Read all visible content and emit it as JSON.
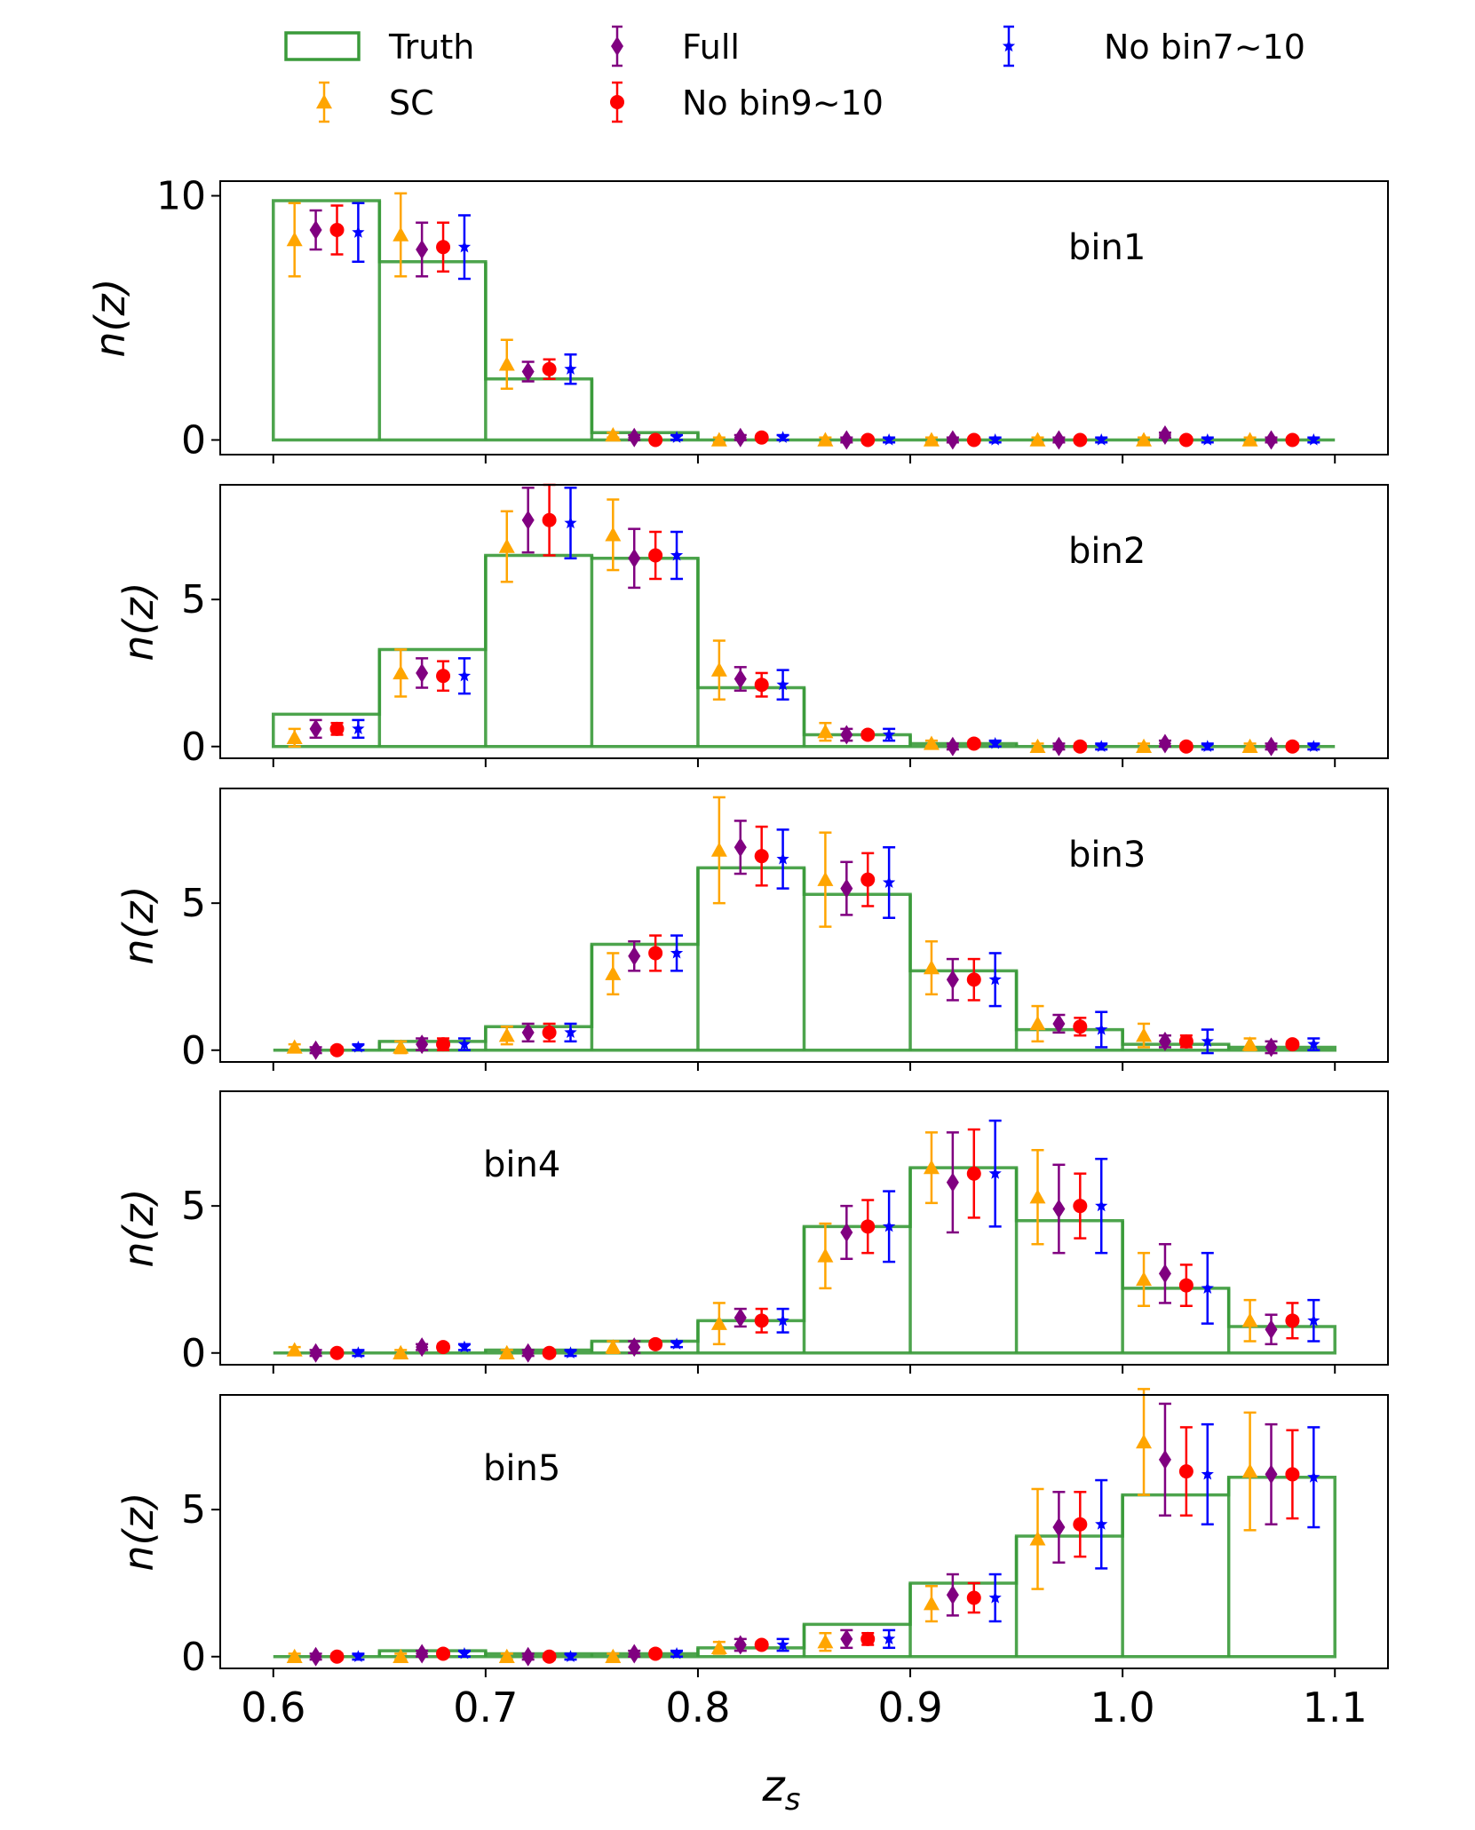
{
  "chart_data": {
    "type": "bar",
    "legend": {
      "placement": "top",
      "entries": [
        {
          "key": "truth",
          "label": "Truth"
        },
        {
          "key": "full",
          "label": "Full"
        },
        {
          "key": "no710",
          "label": "No bin7~10"
        },
        {
          "key": "sc",
          "label": "SC"
        },
        {
          "key": "no910",
          "label": "No bin9~10"
        }
      ]
    },
    "xlabel": "z_s",
    "ylabel": "n(z)",
    "xlim": [
      0.575,
      1.125
    ],
    "x_ticks": [
      "0.6",
      "0.7",
      "0.8",
      "0.9",
      "1.0",
      "1.1"
    ],
    "bin_edges": [
      0.6,
      0.65,
      0.7,
      0.75,
      0.8,
      0.85,
      0.9,
      0.95,
      1.0,
      1.05,
      1.1
    ],
    "colors": {
      "truth": "#3a9a3a",
      "sc": "#ffa500",
      "full": "#800080",
      "no910": "#ff0000",
      "no710": "#0000ff"
    },
    "markers": {
      "sc": "triangle",
      "full": "diamond",
      "no910": "circle",
      "no710": "star"
    },
    "offsets": {
      "sc": -0.015,
      "full": -0.005,
      "no910": 0.005,
      "no710": 0.015
    },
    "panels": [
      {
        "label": "bin1",
        "ylim": [
          -0.6,
          10.6
        ],
        "yticks": [
          "0",
          "10"
        ],
        "truth": [
          9.8,
          7.3,
          2.5,
          0.3,
          0.0,
          0.0,
          0.0,
          0.0,
          0.0,
          0.0
        ],
        "series": {
          "sc": {
            "values": [
              8.2,
              8.4,
              3.1,
              0.2,
              0.0,
              0.0,
              0.0,
              0.0,
              0.0,
              0.0
            ],
            "errors": [
              1.5,
              1.7,
              1.0,
              0.1,
              0.1,
              0.1,
              0.1,
              0.1,
              0.1,
              0.1
            ]
          },
          "full": {
            "values": [
              8.6,
              7.8,
              2.8,
              0.1,
              0.1,
              0.0,
              0.0,
              0.0,
              0.2,
              0.0
            ],
            "errors": [
              0.8,
              1.1,
              0.4,
              0.1,
              0.1,
              0.1,
              0.1,
              0.1,
              0.1,
              0.1
            ]
          },
          "no910": {
            "values": [
              8.6,
              7.9,
              2.9,
              0.0,
              0.1,
              0.0,
              0.0,
              0.0,
              0.0,
              0.0
            ],
            "errors": [
              1.0,
              1.0,
              0.4,
              0.1,
              0.1,
              0.1,
              0.1,
              0.1,
              0.1,
              0.1
            ]
          },
          "no710": {
            "values": [
              8.5,
              7.9,
              2.9,
              0.1,
              0.1,
              0.0,
              0.0,
              0.0,
              0.0,
              0.0
            ],
            "errors": [
              1.2,
              1.3,
              0.6,
              0.1,
              0.1,
              0.1,
              0.1,
              0.1,
              0.1,
              0.1
            ]
          }
        }
      },
      {
        "label": "bin2",
        "ylim": [
          -0.4,
          8.9
        ],
        "yticks": [
          "0",
          "5"
        ],
        "truth": [
          1.1,
          3.3,
          6.5,
          6.4,
          2.0,
          0.4,
          0.1,
          0.0,
          0.0,
          0.0
        ],
        "series": {
          "sc": {
            "values": [
              0.3,
              2.5,
              6.8,
              7.2,
              2.6,
              0.5,
              0.1,
              0.0,
              0.0,
              0.0
            ],
            "errors": [
              0.3,
              0.8,
              1.2,
              1.2,
              1.0,
              0.3,
              0.1,
              0.1,
              0.1,
              0.1
            ]
          },
          "full": {
            "values": [
              0.6,
              2.5,
              7.7,
              6.4,
              2.3,
              0.4,
              0.0,
              0.0,
              0.1,
              0.0
            ],
            "errors": [
              0.3,
              0.5,
              1.1,
              1.0,
              0.4,
              0.2,
              0.1,
              0.1,
              0.1,
              0.1
            ]
          },
          "no910": {
            "values": [
              0.6,
              2.4,
              7.7,
              6.5,
              2.1,
              0.4,
              0.1,
              0.0,
              0.0,
              0.0
            ],
            "errors": [
              0.2,
              0.5,
              1.2,
              0.8,
              0.4,
              0.1,
              0.1,
              0.1,
              0.1,
              0.1
            ]
          },
          "no710": {
            "values": [
              0.6,
              2.4,
              7.6,
              6.5,
              2.1,
              0.4,
              0.1,
              0.0,
              0.0,
              0.0
            ],
            "errors": [
              0.3,
              0.6,
              1.2,
              0.8,
              0.5,
              0.2,
              0.1,
              0.1,
              0.1,
              0.1
            ]
          }
        }
      },
      {
        "label": "bin3",
        "ylim": [
          -0.4,
          8.9
        ],
        "yticks": [
          "0",
          "5"
        ],
        "truth": [
          0.0,
          0.3,
          0.8,
          3.6,
          6.2,
          5.3,
          2.7,
          0.7,
          0.2,
          0.1
        ],
        "series": {
          "sc": {
            "values": [
              0.1,
              0.1,
              0.5,
              2.6,
              6.8,
              5.8,
              2.8,
              0.9,
              0.5,
              0.2
            ],
            "errors": [
              0.1,
              0.2,
              0.3,
              0.7,
              1.8,
              1.6,
              0.9,
              0.6,
              0.4,
              0.2
            ]
          },
          "full": {
            "values": [
              0.0,
              0.2,
              0.6,
              3.2,
              6.9,
              5.5,
              2.4,
              0.9,
              0.3,
              0.1
            ],
            "errors": [
              0.1,
              0.2,
              0.3,
              0.5,
              0.9,
              0.9,
              0.7,
              0.3,
              0.2,
              0.2
            ]
          },
          "no910": {
            "values": [
              0.0,
              0.2,
              0.6,
              3.3,
              6.6,
              5.8,
              2.4,
              0.8,
              0.3,
              0.2
            ],
            "errors": [
              0.1,
              0.2,
              0.3,
              0.6,
              1.0,
              0.9,
              0.7,
              0.3,
              0.2,
              0.1
            ]
          },
          "no710": {
            "values": [
              0.1,
              0.2,
              0.6,
              3.3,
              6.5,
              5.7,
              2.4,
              0.7,
              0.3,
              0.2
            ],
            "errors": [
              0.1,
              0.2,
              0.3,
              0.6,
              1.0,
              1.2,
              0.9,
              0.6,
              0.4,
              0.2
            ]
          }
        }
      },
      {
        "label": "bin4",
        "ylim": [
          -0.4,
          8.9
        ],
        "yticks": [
          "0",
          "5"
        ],
        "truth": [
          0.0,
          0.0,
          0.1,
          0.4,
          1.1,
          4.3,
          6.3,
          4.5,
          2.2,
          0.9
        ],
        "series": {
          "sc": {
            "values": [
              0.1,
              0.0,
              0.0,
              0.2,
              1.0,
              3.3,
              6.3,
              5.3,
              2.5,
              1.1
            ],
            "errors": [
              0.1,
              0.1,
              0.1,
              0.2,
              0.7,
              1.1,
              1.2,
              1.6,
              0.9,
              0.7
            ]
          },
          "full": {
            "values": [
              0.0,
              0.2,
              0.0,
              0.2,
              1.2,
              4.1,
              5.8,
              4.9,
              2.7,
              0.8
            ],
            "errors": [
              0.1,
              0.1,
              0.1,
              0.2,
              0.3,
              0.9,
              1.7,
              1.5,
              1.0,
              0.5
            ]
          },
          "no910": {
            "values": [
              0.0,
              0.2,
              0.0,
              0.3,
              1.1,
              4.3,
              6.1,
              5.0,
              2.3,
              1.1
            ],
            "errors": [
              0.1,
              0.1,
              0.1,
              0.1,
              0.4,
              0.9,
              1.5,
              1.1,
              0.7,
              0.6
            ]
          },
          "no710": {
            "values": [
              0.0,
              0.2,
              0.0,
              0.3,
              1.1,
              4.3,
              6.1,
              5.0,
              2.2,
              1.1
            ],
            "errors": [
              0.1,
              0.1,
              0.1,
              0.1,
              0.4,
              1.2,
              1.8,
              1.6,
              1.2,
              0.7
            ]
          }
        }
      },
      {
        "label": "bin5",
        "ylim": [
          -0.4,
          8.9
        ],
        "yticks": [
          "0",
          "5"
        ],
        "truth": [
          0.0,
          0.2,
          0.1,
          0.1,
          0.3,
          1.1,
          2.5,
          4.1,
          5.5,
          6.1
        ],
        "series": {
          "sc": {
            "values": [
              0.0,
              0.0,
              0.0,
              0.0,
              0.3,
              0.5,
              1.8,
              4.0,
              7.3,
              6.3
            ],
            "errors": [
              0.1,
              0.1,
              0.1,
              0.1,
              0.2,
              0.3,
              0.6,
              1.7,
              1.8,
              2.0
            ]
          },
          "full": {
            "values": [
              0.0,
              0.1,
              0.0,
              0.1,
              0.4,
              0.6,
              2.1,
              4.4,
              6.7,
              6.2
            ],
            "errors": [
              0.1,
              0.1,
              0.1,
              0.1,
              0.2,
              0.3,
              0.7,
              1.2,
              1.9,
              1.7
            ]
          },
          "no910": {
            "values": [
              0.0,
              0.1,
              0.0,
              0.1,
              0.4,
              0.6,
              2.0,
              4.5,
              6.3,
              6.2
            ],
            "errors": [
              0.1,
              0.1,
              0.1,
              0.1,
              0.1,
              0.2,
              0.5,
              1.1,
              1.5,
              1.5
            ]
          },
          "no710": {
            "values": [
              0.0,
              0.1,
              0.0,
              0.1,
              0.4,
              0.6,
              2.0,
              4.5,
              6.2,
              6.1
            ],
            "errors": [
              0.1,
              0.1,
              0.1,
              0.1,
              0.2,
              0.3,
              0.8,
              1.5,
              1.7,
              1.7
            ]
          }
        }
      }
    ]
  }
}
